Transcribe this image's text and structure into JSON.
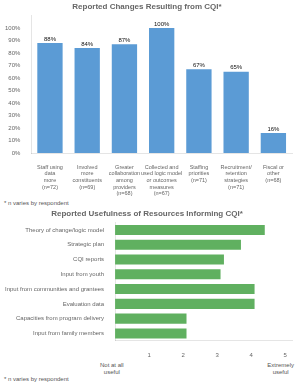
{
  "chart_data": [
    {
      "type": "bar",
      "title": "Reported Changes Resulting from CQI*",
      "categories": [
        "Staff using\ndata\nmore\n(n=72)",
        "Involved\nmore\nconstituents\n(n=69)",
        "Greater\ncollaboration\namong\nproviders\n(n=68)",
        "Collected and\nused logic model\nor outcomes\nmeasures\n(n=67)",
        "Staffing\npriorities\n(n=71)",
        "Recruitment/\nretention\nstrategies\n(n=71)",
        "Fiscal or\nother\n(n=68)"
      ],
      "values": [
        88,
        84,
        87,
        100,
        67,
        65,
        16
      ],
      "value_labels": [
        "88%",
        "84%",
        "87%",
        "100%",
        "67%",
        "65%",
        "16%"
      ],
      "data_labels": true,
      "color": "#5b9bd5",
      "ylim": [
        0,
        110
      ],
      "yticks": [
        {
          "value": 0,
          "label": "0%"
        },
        {
          "value": 10,
          "label": "10%"
        },
        {
          "value": 20,
          "label": "20%"
        },
        {
          "value": 30,
          "label": "30%"
        },
        {
          "value": 40,
          "label": "40%"
        },
        {
          "value": 50,
          "label": "50%"
        },
        {
          "value": 60,
          "label": "60%"
        },
        {
          "value": 70,
          "label": "70%"
        },
        {
          "value": 80,
          "label": "80%"
        },
        {
          "value": 90,
          "label": "90%"
        },
        {
          "value": 100,
          "label": "100%"
        }
      ],
      "grid": false,
      "annotations": [
        "* n varies by respondent"
      ]
    },
    {
      "type": "bar",
      "orientation": "horizontal",
      "title": "Reported Usefulness of Resources Informing CQI*",
      "categories": [
        "Theory of change/logic model",
        "Strategic plan",
        "CQI reports",
        "Input from youth",
        "Input from communities and grantees",
        "Evaluation data",
        "Capacities from program delivery",
        "Input from family members"
      ],
      "values": [
        4.4,
        3.7,
        3.2,
        3.1,
        4.1,
        4.1,
        2.1,
        2.1
      ],
      "color": "#60b060",
      "xlim": [
        0,
        5.2
      ],
      "xticks": [
        1,
        2,
        3,
        4,
        5
      ],
      "grid": false,
      "annotations": [
        "Not at all\nuseful",
        "Extremely\nuseful",
        "* n varies by respondent"
      ]
    }
  ]
}
